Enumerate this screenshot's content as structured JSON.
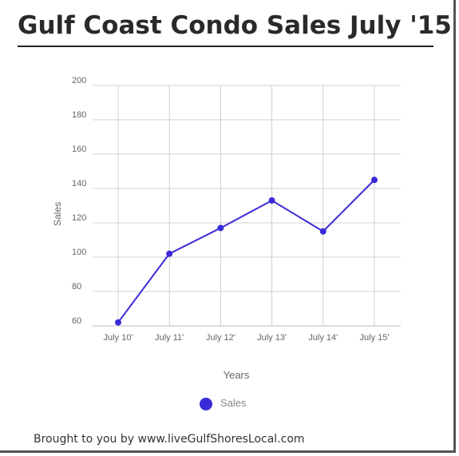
{
  "title": "Gulf Coast Condo Sales July '15",
  "footer": "Brought to you by www.liveGulfShoresLocal.com",
  "colors": {
    "series": "#3a2bd8",
    "grid": "#d0d0d0",
    "axis_text": "#666666"
  },
  "chart_data": {
    "type": "line",
    "categories": [
      "July 10'",
      "July 11'",
      "July 12'",
      "July 13'",
      "July 14'",
      "July 15'"
    ],
    "series": [
      {
        "name": "Sales",
        "values": [
          62,
          102,
          117,
          133,
          115,
          145
        ]
      }
    ],
    "xlabel": "Years",
    "ylabel": "Sales",
    "ylim": [
      60,
      200
    ],
    "yticks": [
      60,
      80,
      100,
      120,
      140,
      160,
      180,
      200
    ],
    "grid": true,
    "legend": "bottom-center"
  }
}
